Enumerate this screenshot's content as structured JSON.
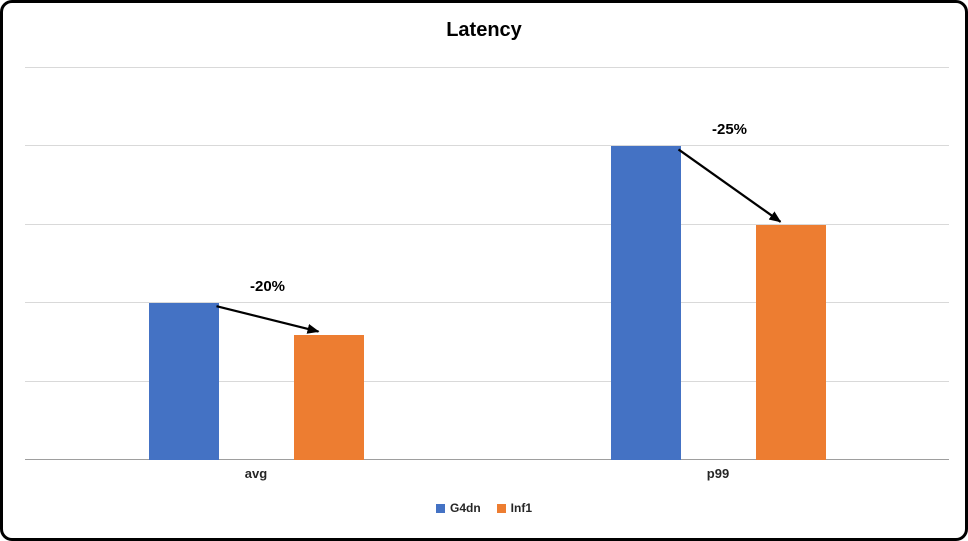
{
  "chart_data": {
    "type": "bar",
    "title": "Latency",
    "categories": [
      "avg",
      "p99"
    ],
    "series": [
      {
        "name": "G4dn",
        "color": "#4472C4",
        "values": [
          2,
          4
        ]
      },
      {
        "name": "Inf1",
        "color": "#ED7D31",
        "values": [
          1.6,
          3
        ]
      }
    ],
    "annotations": [
      {
        "category": "avg",
        "label": "-20%"
      },
      {
        "category": "p99",
        "label": "-25%"
      }
    ],
    "xlabel": "",
    "ylabel": "",
    "ylim": [
      0,
      5
    ],
    "gridline_step": 1,
    "grid": true,
    "legend_position": "bottom",
    "colors": {
      "gridline": "#d9d9d9",
      "axis_line": "#9e9e9e",
      "arrow": "#000000",
      "frame_border": "#000000"
    }
  }
}
